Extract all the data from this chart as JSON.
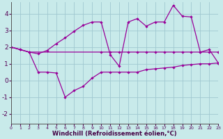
{
  "xlabel": "Windchill (Refroidissement éolien,°C)",
  "xlim": [
    0,
    23
  ],
  "ylim": [
    -2.6,
    4.7
  ],
  "yticks": [
    -2,
    -1,
    0,
    1,
    2,
    3,
    4
  ],
  "xticks": [
    0,
    1,
    2,
    3,
    4,
    5,
    6,
    7,
    8,
    9,
    10,
    11,
    12,
    13,
    14,
    15,
    16,
    17,
    18,
    19,
    20,
    21,
    22,
    23
  ],
  "bg_color": "#c8eaea",
  "grid_color": "#a0c8d0",
  "line_color": "#990099",
  "line1_x": [
    0,
    2,
    3,
    4,
    5,
    6,
    7,
    8,
    9,
    10,
    11,
    12,
    13,
    14,
    15,
    16,
    17,
    18,
    19,
    20,
    21,
    22,
    23
  ],
  "line1_y": [
    2.0,
    1.7,
    1.6,
    1.8,
    2.2,
    2.55,
    2.95,
    3.3,
    3.5,
    3.5,
    1.55,
    0.85,
    3.5,
    3.7,
    3.25,
    3.5,
    3.5,
    4.5,
    3.85,
    3.8,
    1.7,
    1.85,
    1.05
  ],
  "line2_x": [
    0,
    1,
    2,
    10,
    11,
    12,
    13,
    14,
    15,
    16,
    17,
    18,
    19,
    20,
    21,
    22,
    23
  ],
  "line2_y": [
    2.0,
    1.85,
    1.7,
    1.7,
    1.7,
    1.7,
    1.7,
    1.7,
    1.7,
    1.7,
    1.7,
    1.7,
    1.7,
    1.7,
    1.7,
    1.7,
    1.7
  ],
  "line3_x": [
    0,
    1,
    2,
    3,
    4,
    5,
    6,
    7,
    8,
    9,
    10,
    11,
    12,
    13,
    14,
    15,
    16,
    17,
    18,
    19,
    20,
    21,
    22,
    23
  ],
  "line3_y": [
    2.0,
    1.85,
    1.7,
    0.5,
    0.5,
    0.45,
    -1.0,
    -0.6,
    -0.35,
    0.15,
    0.5,
    0.5,
    0.5,
    0.5,
    0.5,
    0.65,
    0.7,
    0.75,
    0.8,
    0.9,
    0.95,
    1.0,
    1.0,
    1.05
  ],
  "xtick_fontsize": 4.5,
  "ytick_fontsize": 6.5,
  "xlabel_fontsize": 6.0
}
